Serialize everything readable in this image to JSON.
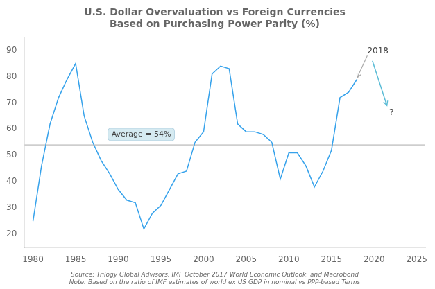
{
  "chart_data": {
    "type": "line",
    "title": "U.S. Dollar Overvaluation vs Foreign Currencies",
    "subtitle": "Based on Purchasing Power Parity (%)",
    "source": "Source: Trilogy Global Advisors, IMF October 2017 World Economic Outlook, and Macrobond\nNote: Based on the ratio of IMF estimates of world ex US GDP in nominal vs PPP-based Terms",
    "x": [
      1980,
      1981,
      1982,
      1983,
      1984,
      1985,
      1986,
      1987,
      1988,
      1989,
      1990,
      1991,
      1992,
      1993,
      1994,
      1995,
      1996,
      1997,
      1998,
      1999,
      2000,
      2001,
      2002,
      2003,
      2004,
      2005,
      2006,
      2007,
      2008,
      2009,
      2010,
      2011,
      2012,
      2013,
      2014,
      2015,
      2016,
      2017,
      2018
    ],
    "values": [
      25,
      46,
      62,
      72,
      79,
      85,
      65,
      55,
      48,
      43,
      37,
      33,
      32,
      22,
      28,
      31,
      37,
      43,
      44,
      55,
      59,
      81,
      84,
      83,
      62,
      59,
      59,
      58,
      55,
      41,
      51,
      51,
      46,
      38,
      44,
      52,
      72,
      74,
      79
    ],
    "xlim": [
      1979,
      2026
    ],
    "ylim": [
      15,
      95
    ],
    "xticks": [
      1980,
      1985,
      1990,
      1995,
      2000,
      2005,
      2010,
      2015,
      2020,
      2025
    ],
    "yticks": [
      20,
      30,
      40,
      50,
      60,
      70,
      80,
      90
    ],
    "grid": false,
    "average_line": {
      "value": 54,
      "label": "Average = 54%",
      "label_x": 1989.2,
      "label_y": 58
    },
    "annotations": [
      {
        "text": "2018",
        "x": 2019.2,
        "y": 88,
        "arrow_to": [
          2018,
          79
        ]
      },
      {
        "text": "?",
        "x": 2021.5,
        "y": 69,
        "arrow_from": [
          2019.8,
          86
        ]
      }
    ]
  }
}
